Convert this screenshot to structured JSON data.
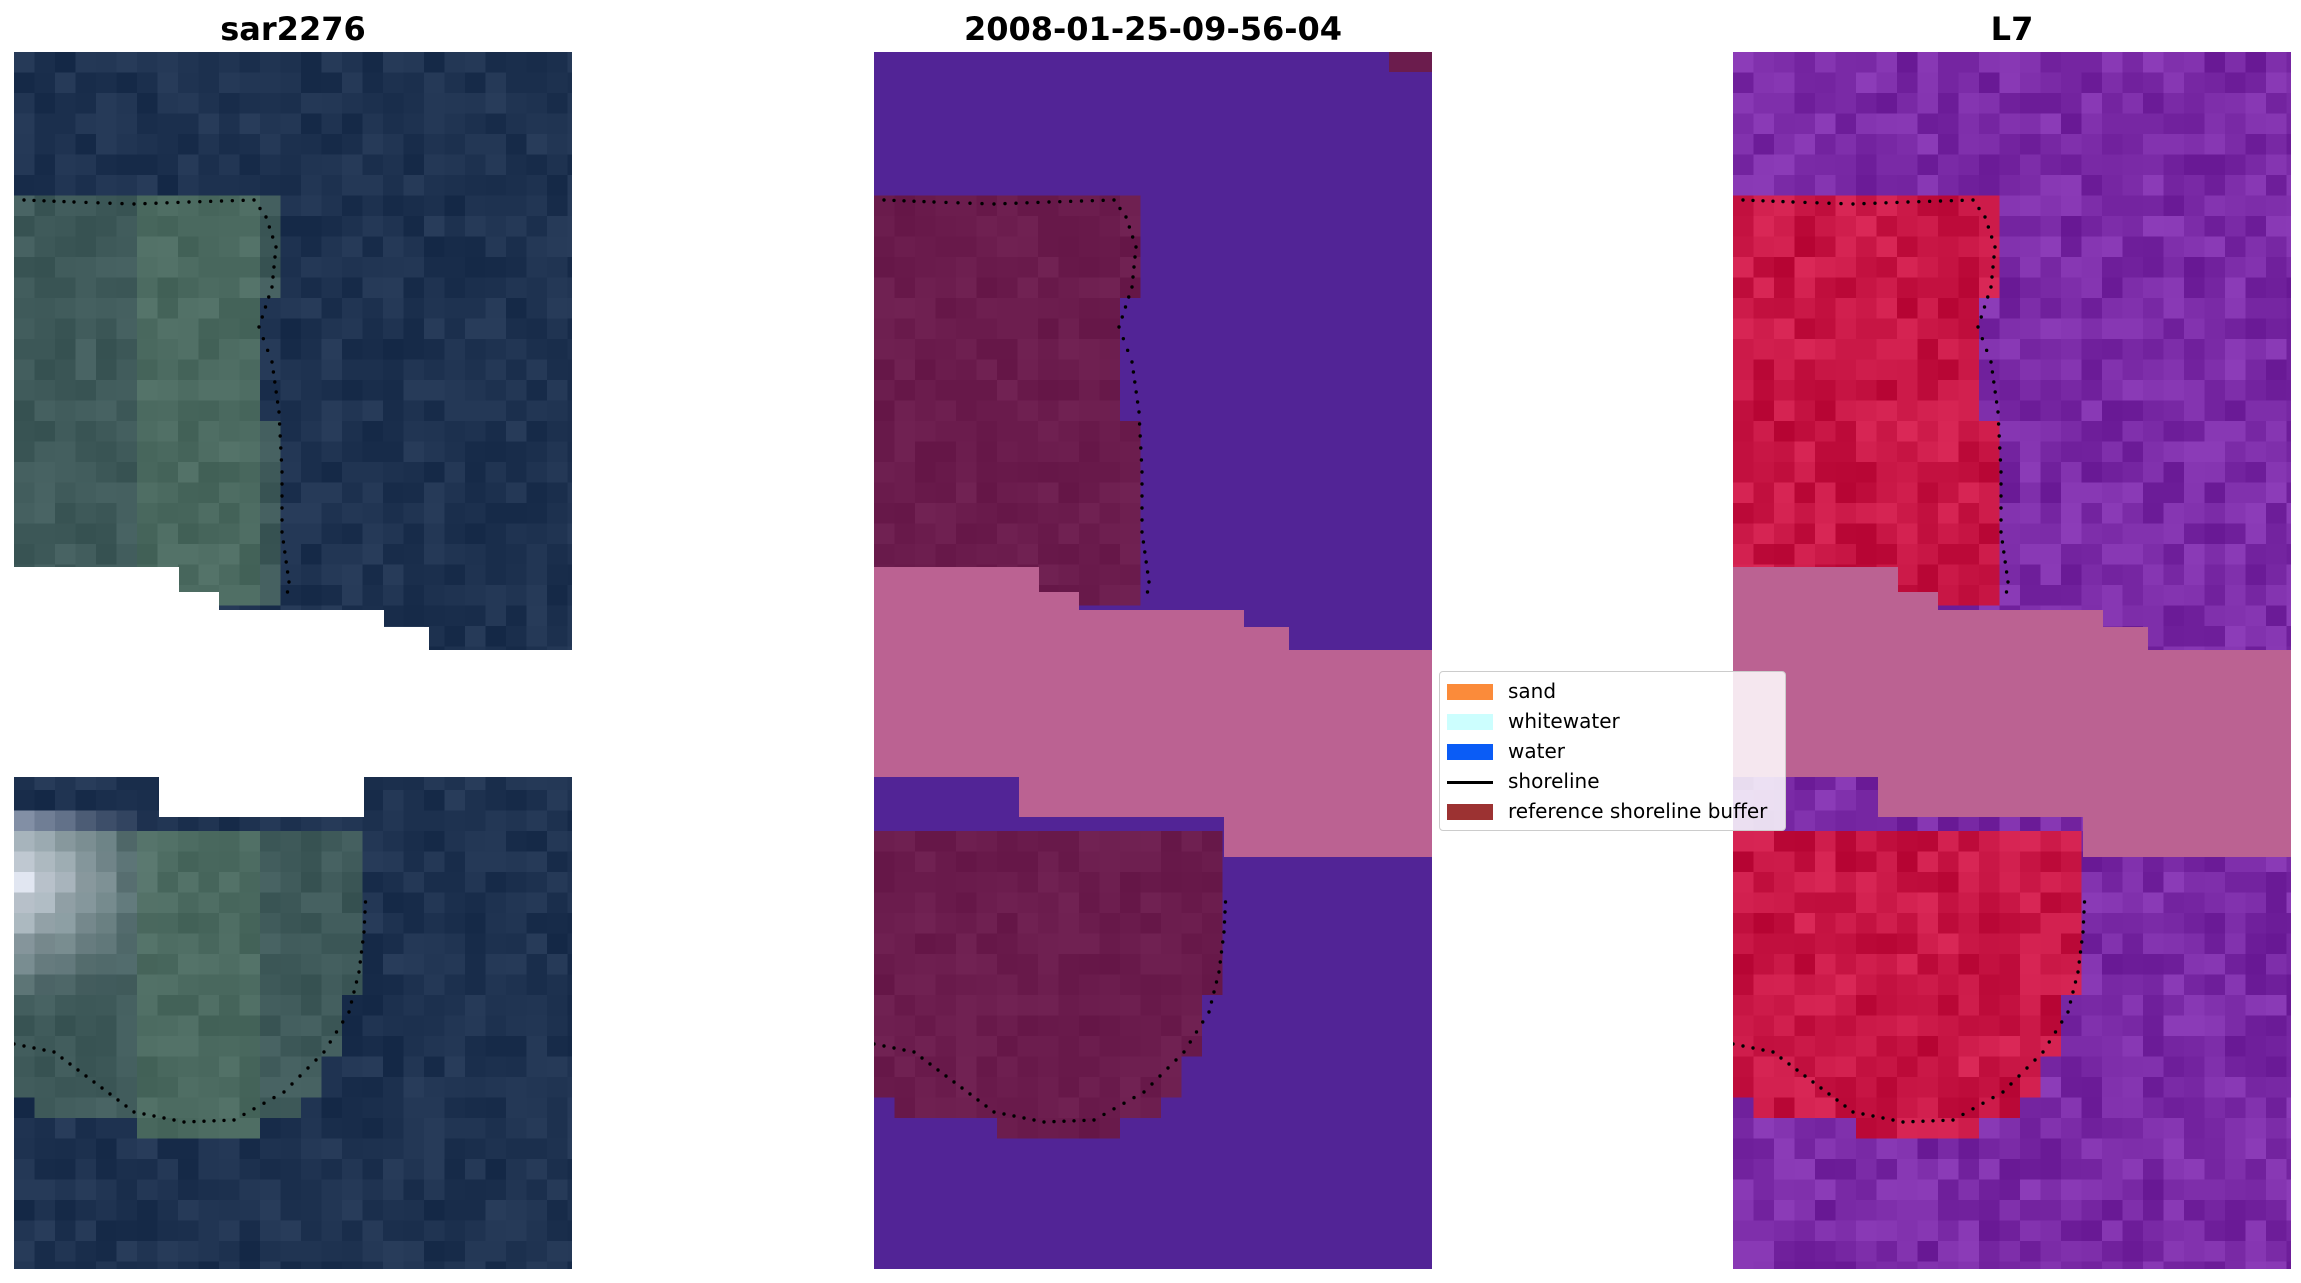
{
  "panels": [
    {
      "id": "rgb",
      "title": "sar2276"
    },
    {
      "id": "classified",
      "title": "2008-01-25-09-56-04"
    },
    {
      "id": "index",
      "title": "L7"
    }
  ],
  "legend": {
    "items": [
      {
        "label": "sand",
        "color": "#fb8b3a",
        "kind": "patch"
      },
      {
        "label": "whitewater",
        "color": "#ccfefe",
        "kind": "patch"
      },
      {
        "label": "water",
        "color": "#0a5cf6",
        "kind": "patch"
      },
      {
        "label": "shoreline",
        "color": "#000000",
        "kind": "line"
      },
      {
        "label": "reference shoreline buffer",
        "color": "#9c3232",
        "kind": "patch"
      }
    ]
  },
  "colors": {
    "rgb_water": "#1e3250",
    "rgb_land": "#3f5a5a",
    "rgb_cloud": "#e6eaf6",
    "class_water": "#522496",
    "class_land": "#6b1c4d",
    "class_buffer_band": "#bb6292",
    "index_water": "#7a2aa6",
    "index_land": "#c81645",
    "index_buffer_band": "#bb6292",
    "shoreline_dots": "#000000"
  }
}
